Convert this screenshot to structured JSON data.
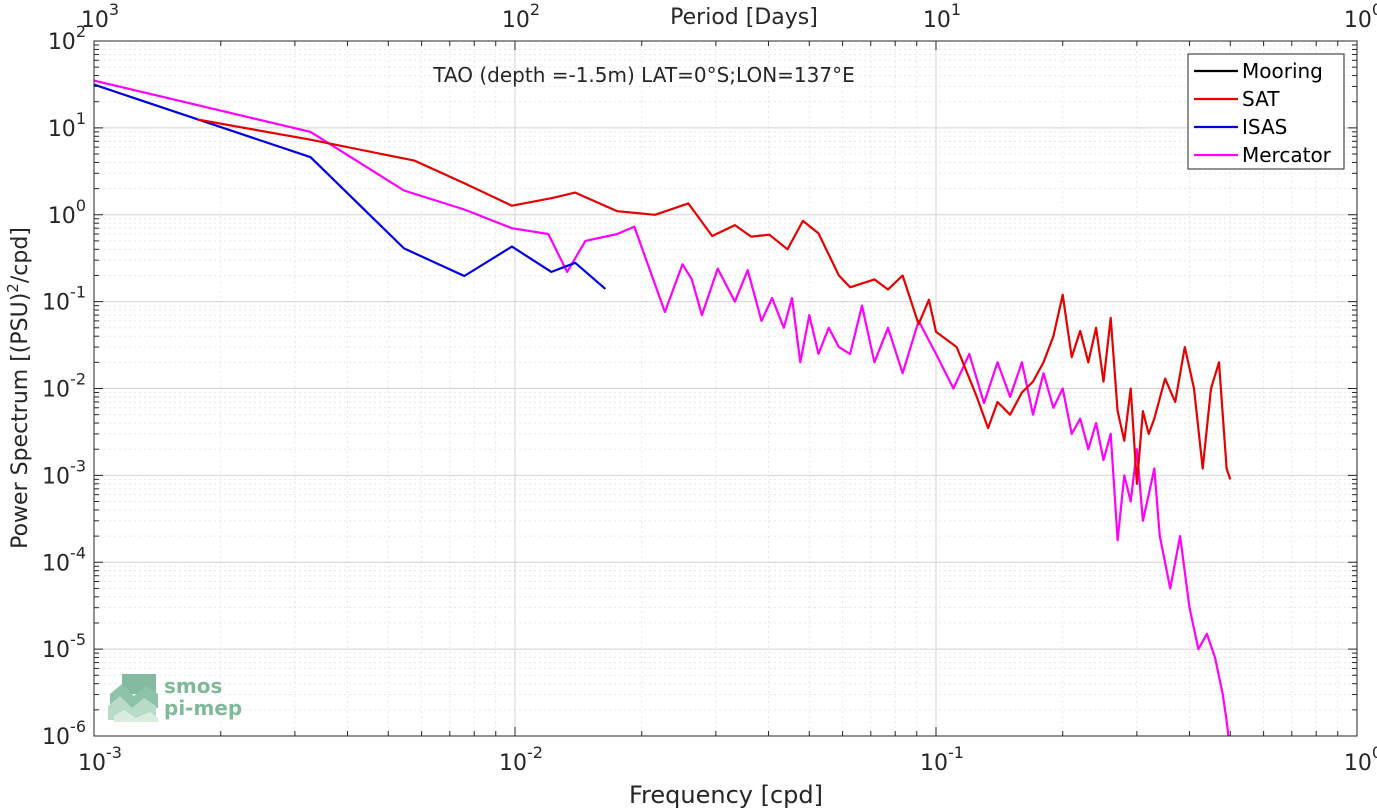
{
  "chart_data": {
    "type": "line",
    "title": "TAO (depth =-1.5m) LAT=0°S;LON=137°E",
    "xlabel": "Frequency [cpd]",
    "ylabel": "Power Spectrum [(PSU)",
    "ylabel_sup": "2",
    "ylabel_tail": "/cpd]",
    "x2label": "Period [Days]",
    "xscale": "log",
    "yscale": "log",
    "xlim": [
      0.001,
      1
    ],
    "ylim": [
      1e-06,
      100
    ],
    "grid": true,
    "legend_position": "top-right",
    "x_ticks": [
      {
        "base": "10",
        "exp": "-3"
      },
      {
        "base": "10",
        "exp": "-2"
      },
      {
        "base": "10",
        "exp": "-1"
      },
      {
        "base": "10",
        "exp": "0"
      }
    ],
    "y_ticks": [
      {
        "base": "10",
        "exp": "-6"
      },
      {
        "base": "10",
        "exp": "-5"
      },
      {
        "base": "10",
        "exp": "-4"
      },
      {
        "base": "10",
        "exp": "-3"
      },
      {
        "base": "10",
        "exp": "-2"
      },
      {
        "base": "10",
        "exp": "-1"
      },
      {
        "base": "10",
        "exp": "0"
      },
      {
        "base": "10",
        "exp": "1"
      },
      {
        "base": "10",
        "exp": "2"
      }
    ],
    "x2_ticks": [
      {
        "base": "10",
        "exp": "3"
      },
      {
        "base": "10",
        "exp": "2"
      },
      {
        "base": "10",
        "exp": "1"
      },
      {
        "base": "10",
        "exp": "0"
      }
    ],
    "series": [
      {
        "name": "Mooring",
        "color": "#000000",
        "x": [],
        "y": []
      },
      {
        "name": "SAT",
        "color": "#e60000",
        "x": [
          0.00176,
          0.00327,
          0.00577,
          0.00758,
          0.00983,
          0.0122,
          0.0139,
          0.0175,
          0.0215,
          0.0258,
          0.0294,
          0.0333,
          0.0364,
          0.0402,
          0.0444,
          0.0483,
          0.0526,
          0.0588,
          0.0625,
          0.0714,
          0.0769,
          0.0833,
          0.0909,
          0.0962,
          0.1,
          0.112,
          0.125,
          0.133,
          0.14,
          0.15,
          0.16,
          0.17,
          0.18,
          0.19,
          0.2,
          0.21,
          0.22,
          0.23,
          0.24,
          0.25,
          0.26,
          0.27,
          0.28,
          0.29,
          0.3,
          0.31,
          0.32,
          0.33,
          0.35,
          0.37,
          0.39,
          0.41,
          0.43,
          0.45,
          0.47,
          0.49,
          0.5
        ],
        "y": [
          12.5,
          7.3,
          4.2,
          2.3,
          1.27,
          1.55,
          1.8,
          1.1,
          1.0,
          1.35,
          0.57,
          0.76,
          0.56,
          0.59,
          0.4,
          0.85,
          0.61,
          0.2,
          0.146,
          0.18,
          0.138,
          0.2,
          0.055,
          0.105,
          0.045,
          0.03,
          0.008,
          0.0035,
          0.007,
          0.005,
          0.009,
          0.012,
          0.02,
          0.04,
          0.12,
          0.023,
          0.046,
          0.02,
          0.05,
          0.012,
          0.065,
          0.0055,
          0.0025,
          0.01,
          0.0008,
          0.0055,
          0.003,
          0.0045,
          0.013,
          0.007,
          0.03,
          0.01,
          0.0012,
          0.01,
          0.02,
          0.0012,
          0.0009
        ]
      },
      {
        "name": "ISAS",
        "color": "#0000e6",
        "x": [
          0.001,
          0.00327,
          0.00545,
          0.00758,
          0.00983,
          0.0122,
          0.0139,
          0.0164
        ],
        "y": [
          31.5,
          4.6,
          0.41,
          0.197,
          0.43,
          0.22,
          0.28,
          0.14
        ]
      },
      {
        "name": "Mercator",
        "color": "#ff00ff",
        "x": [
          0.001,
          0.00327,
          0.00545,
          0.00758,
          0.00983,
          0.012,
          0.0133,
          0.0147,
          0.0175,
          0.0192,
          0.0213,
          0.0227,
          0.025,
          0.0263,
          0.0278,
          0.0303,
          0.0333,
          0.0357,
          0.0385,
          0.0408,
          0.0435,
          0.0455,
          0.0476,
          0.05,
          0.0526,
          0.0556,
          0.0588,
          0.0625,
          0.0667,
          0.0714,
          0.0769,
          0.0833,
          0.0909,
          0.1,
          0.11,
          0.12,
          0.13,
          0.14,
          0.15,
          0.16,
          0.17,
          0.18,
          0.19,
          0.2,
          0.21,
          0.22,
          0.23,
          0.24,
          0.25,
          0.26,
          0.27,
          0.28,
          0.29,
          0.3,
          0.31,
          0.32,
          0.33,
          0.34,
          0.36,
          0.38,
          0.4,
          0.42,
          0.44,
          0.46,
          0.48,
          0.49,
          0.495
        ],
        "y": [
          35,
          9.0,
          1.9,
          1.15,
          0.7,
          0.6,
          0.22,
          0.5,
          0.6,
          0.73,
          0.18,
          0.076,
          0.27,
          0.18,
          0.07,
          0.24,
          0.1,
          0.23,
          0.06,
          0.11,
          0.05,
          0.11,
          0.02,
          0.07,
          0.025,
          0.05,
          0.03,
          0.025,
          0.09,
          0.02,
          0.05,
          0.015,
          0.06,
          0.025,
          0.01,
          0.025,
          0.0068,
          0.02,
          0.008,
          0.02,
          0.005,
          0.015,
          0.006,
          0.01,
          0.003,
          0.0045,
          0.002,
          0.004,
          0.0015,
          0.003,
          0.00018,
          0.001,
          0.0005,
          0.002,
          0.0003,
          0.0006,
          0.0012,
          0.0002,
          5e-05,
          0.0002,
          3e-05,
          1e-05,
          1.5e-05,
          8e-06,
          3e-06,
          1.5e-06,
          1e-06
        ]
      }
    ]
  },
  "logo": {
    "line1": "smos",
    "line2": "pi-mep"
  }
}
